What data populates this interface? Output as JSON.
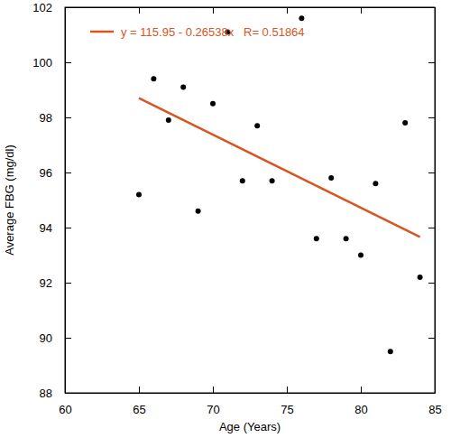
{
  "chart_data": {
    "type": "scatter",
    "x_label": "Age (Years)",
    "y_label": "Average FBG (mg/dl)",
    "xlim": [
      60,
      85
    ],
    "xticks": [
      60,
      65,
      70,
      75,
      80,
      85
    ],
    "ylim": [
      88,
      102
    ],
    "yticks": [
      88,
      90,
      92,
      94,
      96,
      98,
      100,
      102
    ],
    "legend": "upper left",
    "series": [
      {
        "type": "scatter",
        "color": "#000000",
        "marker": "circle",
        "x": [
          65,
          66,
          67,
          68,
          69,
          70,
          71,
          72,
          73,
          74,
          76,
          77,
          78,
          79,
          80,
          81,
          82,
          83,
          84
        ],
        "values": [
          95.2,
          99.4,
          97.9,
          99.1,
          94.6,
          98.5,
          101.1,
          95.7,
          97.7,
          95.7,
          101.6,
          93.6,
          95.8,
          93.6,
          93.0,
          95.6,
          89.5,
          97.8,
          92.2
        ]
      },
      {
        "name": "y = 115.95 - 0.26538x   R= 0.51864",
        "type": "line",
        "color": "#d9541e",
        "line_style": "solid",
        "x": [
          65,
          84
        ],
        "values": [
          98.7,
          93.66
        ]
      }
    ]
  }
}
